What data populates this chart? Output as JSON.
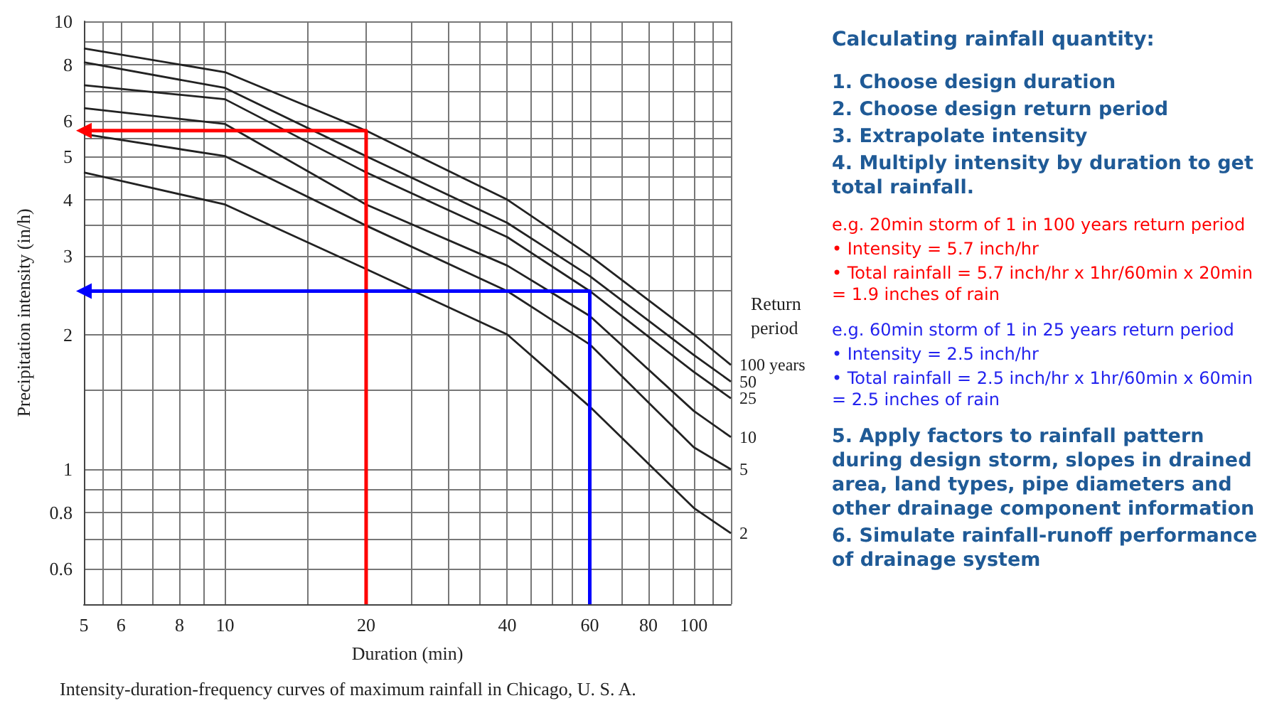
{
  "chart_data": [
    {
      "type": "line",
      "xlabel": "Duration (min)",
      "ylabel": "Precipitation intensity (in/h)",
      "legend_title": "Return period",
      "annotations": [
        "Intensity-duration-frequency curves of maximum rainfall in Chicago, U. S. A."
      ],
      "log": "xy",
      "grid": true,
      "marker": "none",
      "line_style": "solid",
      "xlim": [
        5,
        120
      ],
      "ylim": [
        0.5,
        10
      ],
      "xticks": [
        5,
        {
          "value": 5.5,
          "label": null
        },
        6,
        {
          "value": 7,
          "label": null
        },
        8,
        {
          "value": 9,
          "label": null
        },
        10,
        {
          "value": 15,
          "label": null
        },
        20,
        {
          "value": 25,
          "label": null
        },
        {
          "value": 30,
          "label": null
        },
        {
          "value": 35,
          "label": null
        },
        40,
        {
          "value": 45,
          "label": null
        },
        {
          "value": 50,
          "label": null
        },
        {
          "value": 55,
          "label": null
        },
        60,
        {
          "value": 70,
          "label": null
        },
        80,
        {
          "value": 90,
          "label": null
        },
        100,
        {
          "value": 110,
          "label": null
        },
        {
          "value": 120,
          "label": null
        }
      ],
      "yticks": [
        {
          "value": 0.5,
          "label": null
        },
        0.6,
        {
          "value": 0.7,
          "label": null
        },
        0.8,
        {
          "value": 0.9,
          "label": null
        },
        1,
        {
          "value": 1.5,
          "label": null
        },
        2,
        {
          "value": 2.5,
          "label": null
        },
        3,
        {
          "value": 3.5,
          "label": null
        },
        4,
        {
          "value": 4.5,
          "label": null
        },
        5,
        {
          "value": 5.5,
          "label": null
        },
        6,
        {
          "value": 7,
          "label": null
        },
        8,
        {
          "value": 9,
          "label": null
        },
        10
      ],
      "x": [
        5,
        10,
        20,
        40,
        60,
        100,
        120
      ],
      "series": [
        {
          "name": "100 years",
          "color": "#222222",
          "values": [
            8.7,
            7.7,
            5.7,
            4.0,
            3.0,
            2.0,
            1.71
          ]
        },
        {
          "name": "50",
          "color": "#222222",
          "values": [
            8.1,
            7.1,
            5.0,
            3.55,
            2.7,
            1.8,
            1.57
          ]
        },
        {
          "name": "25",
          "color": "#222222",
          "values": [
            7.2,
            6.7,
            4.6,
            3.3,
            2.5,
            1.65,
            1.44
          ]
        },
        {
          "name": "10",
          "color": "#222222",
          "values": [
            6.4,
            5.9,
            3.9,
            2.85,
            2.2,
            1.35,
            1.18
          ]
        },
        {
          "name": "5",
          "color": "#222222",
          "values": [
            5.6,
            5.0,
            3.5,
            2.5,
            1.9,
            1.12,
            1.0
          ]
        },
        {
          "name": "2",
          "color": "#222222",
          "values": [
            4.6,
            3.9,
            2.8,
            2.0,
            1.38,
            0.82,
            0.72
          ]
        },
        {
          "type": "line",
          "color": "#ff0000",
          "x": [
            20,
            20,
            5
          ],
          "values": [
            0.5,
            5.7,
            5.7
          ]
        },
        {
          "type": "line",
          "color": "#0000ff",
          "x": [
            60,
            60,
            5
          ],
          "values": [
            0.5,
            2.5,
            2.5
          ]
        }
      ]
    },
    {
      "type": "other",
      "title": "Calculating rainfall quantity:",
      "annotations": [
        "1. Choose design duration",
        "2. Choose design return period",
        "3. Extrapolate intensity",
        "4. Multiply intensity by duration to get total rainfall.",
        "e.g. 20min storm of 1 in 100 years return period",
        "• Intensity = 5.7 inch/hr",
        "• Total rainfall = 5.7 inch/hr x 1hr/60min x 20min = 1.9 inches of rain",
        "e.g. 60min storm of 1 in 25 years return period",
        "• Intensity = 2.5 inch/hr",
        "• Total rainfall = 2.5 inch/hr x 1hr/60min x 60min = 2.5 inches of rain",
        "5. Apply factors to rainfall pattern during design storm, slopes in drained area, land types, pipe diameters and other drainage component information",
        "6. Simulate rainfall-runoff performance of drainage system"
      ],
      "colors": [
        "#1f5a96",
        "#1f5a96",
        "#1f5a96",
        "#1f5a96",
        "#ff0000",
        "#ff0000",
        "#ff0000",
        "#2222ee",
        "#2222ee",
        "#2222ee",
        "#1f5a96",
        "#1f5a96"
      ]
    }
  ]
}
